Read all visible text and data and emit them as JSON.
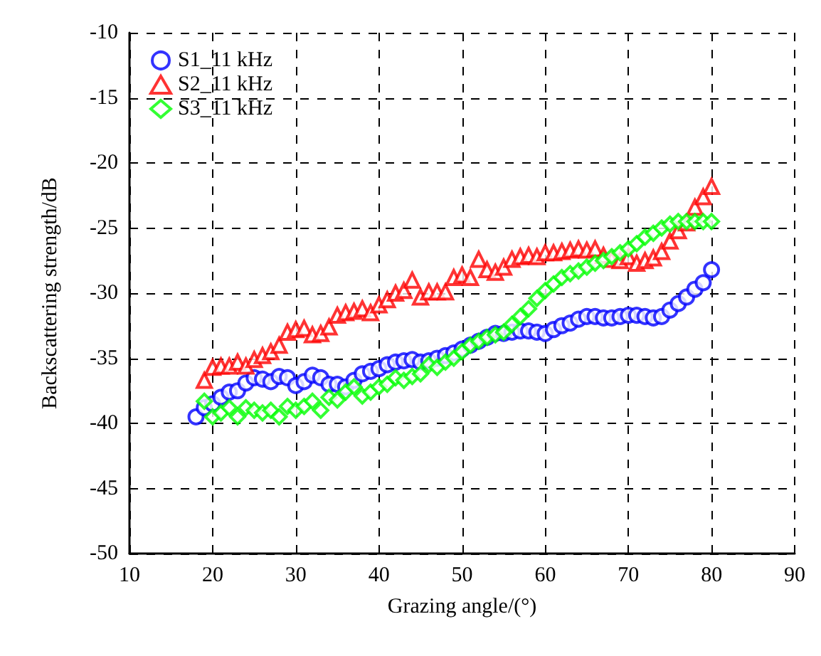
{
  "chart_data": {
    "type": "scatter",
    "xlabel": "Grazing angle/(°)",
    "ylabel": "Backscattering strength/dB",
    "xlim": [
      10,
      90
    ],
    "xticks": [
      10,
      20,
      30,
      40,
      50,
      60,
      70,
      80,
      90
    ],
    "ylim": [
      -50,
      -10
    ],
    "yticks": [
      -50,
      -45,
      -40,
      -35,
      -30,
      -25,
      -20,
      -15,
      -10
    ],
    "grid": true,
    "legend": "top left",
    "series": [
      {
        "name": "S1_11 kHz",
        "color": "#0000ff",
        "marker": "circle",
        "x": [
          18,
          19,
          20,
          21,
          22,
          23,
          24,
          25,
          26,
          27,
          28,
          29,
          30,
          31,
          32,
          33,
          34,
          35,
          36,
          37,
          38,
          39,
          40,
          41,
          42,
          43,
          44,
          45,
          46,
          47,
          48,
          49,
          50,
          51,
          52,
          53,
          54,
          55,
          56,
          57,
          58,
          59,
          60,
          61,
          62,
          63,
          64,
          65,
          66,
          67,
          68,
          69,
          70,
          71,
          72,
          73,
          74,
          75,
          76,
          77,
          78,
          79,
          80
        ],
        "values": [
          -39.5,
          -38.8,
          -38.5,
          -38.0,
          -37.6,
          -37.5,
          -36.9,
          -36.5,
          -36.6,
          -36.8,
          -36.4,
          -36.5,
          -37.1,
          -36.8,
          -36.3,
          -36.5,
          -37.0,
          -37.0,
          -37.2,
          -36.7,
          -36.2,
          -36.0,
          -35.8,
          -35.5,
          -35.3,
          -35.2,
          -35.1,
          -35.3,
          -35.2,
          -35.0,
          -34.8,
          -34.6,
          -34.3,
          -34.0,
          -33.7,
          -33.4,
          -33.1,
          -33.1,
          -33.0,
          -32.9,
          -32.9,
          -33.0,
          -33.1,
          -32.8,
          -32.5,
          -32.3,
          -32.0,
          -31.8,
          -31.8,
          -31.9,
          -31.9,
          -31.8,
          -31.7,
          -31.7,
          -31.8,
          -31.9,
          -31.8,
          -31.3,
          -30.8,
          -30.3,
          -29.7,
          -29.2,
          -28.2
        ]
      },
      {
        "name": "S2_11 kHz",
        "color": "#ff0000",
        "marker": "triangle",
        "x": [
          19,
          20,
          21,
          22,
          23,
          24,
          25,
          26,
          27,
          28,
          29,
          30,
          31,
          32,
          33,
          34,
          35,
          36,
          37,
          38,
          39,
          40,
          41,
          42,
          43,
          44,
          45,
          46,
          47,
          48,
          49,
          50,
          51,
          52,
          53,
          54,
          55,
          56,
          57,
          58,
          59,
          60,
          61,
          62,
          63,
          64,
          65,
          66,
          67,
          68,
          69,
          70,
          71,
          72,
          73,
          74,
          75,
          76,
          77,
          78,
          79,
          80
        ],
        "values": [
          -36.7,
          -35.7,
          -35.6,
          -35.6,
          -35.3,
          -35.6,
          -35.1,
          -34.8,
          -34.5,
          -34.0,
          -33.0,
          -32.8,
          -32.7,
          -33.2,
          -33.1,
          -32.6,
          -31.7,
          -31.5,
          -31.4,
          -31.2,
          -31.5,
          -30.9,
          -30.5,
          -30.0,
          -29.8,
          -29.0,
          -30.3,
          -29.9,
          -29.9,
          -29.9,
          -28.8,
          -28.6,
          -28.8,
          -27.4,
          -28.2,
          -28.4,
          -28.0,
          -27.4,
          -27.2,
          -27.1,
          -27.2,
          -26.9,
          -26.9,
          -26.8,
          -26.7,
          -26.6,
          -26.7,
          -26.6,
          -27.1,
          -27.4,
          -27.5,
          -27.2,
          -27.7,
          -27.5,
          -27.3,
          -26.8,
          -26.0,
          -25.2,
          -24.6,
          -23.4,
          -22.6,
          -21.8
        ]
      },
      {
        "name": "S3_11 kHz",
        "color": "#00ff00",
        "marker": "diamond",
        "x": [
          19,
          20,
          21,
          22,
          23,
          24,
          25,
          26,
          27,
          28,
          29,
          30,
          31,
          32,
          33,
          34,
          35,
          36,
          37,
          38,
          39,
          40,
          41,
          42,
          43,
          44,
          45,
          46,
          47,
          48,
          49,
          50,
          51,
          52,
          53,
          54,
          55,
          56,
          57,
          58,
          59,
          60,
          61,
          62,
          63,
          64,
          65,
          66,
          67,
          68,
          69,
          70,
          71,
          72,
          73,
          74,
          75,
          76,
          77,
          78,
          79,
          80
        ],
        "values": [
          -38.3,
          -39.5,
          -39.2,
          -38.8,
          -39.5,
          -38.8,
          -39.0,
          -39.2,
          -39.0,
          -39.5,
          -38.7,
          -39.0,
          -38.7,
          -38.3,
          -39.0,
          -38.0,
          -38.2,
          -37.6,
          -37.2,
          -37.9,
          -37.6,
          -37.2,
          -37.0,
          -36.5,
          -36.7,
          -36.4,
          -36.2,
          -35.5,
          -35.7,
          -35.3,
          -35.0,
          -34.5,
          -34.0,
          -33.7,
          -33.4,
          -33.2,
          -33.0,
          -32.4,
          -31.8,
          -31.2,
          -30.4,
          -29.8,
          -29.3,
          -28.8,
          -28.5,
          -28.3,
          -28.0,
          -27.7,
          -27.5,
          -27.2,
          -26.9,
          -26.6,
          -26.2,
          -25.7,
          -25.4,
          -25.0,
          -24.7,
          -24.5,
          -24.5,
          -24.5,
          -24.5,
          -24.5
        ]
      }
    ]
  }
}
